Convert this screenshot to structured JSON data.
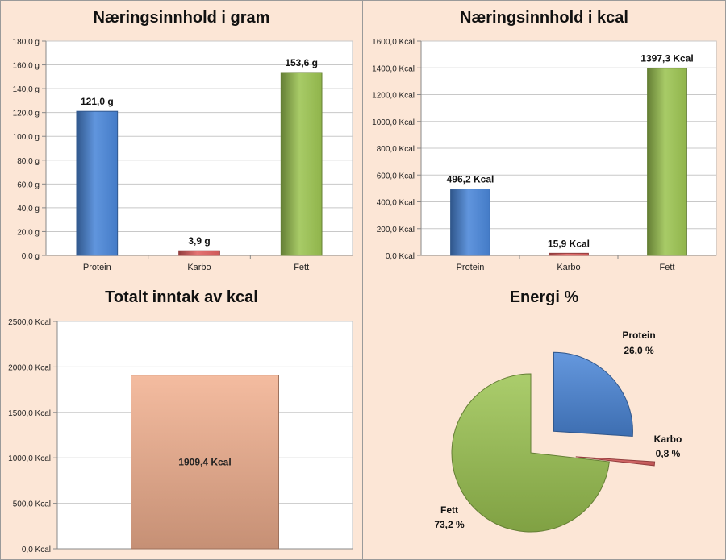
{
  "colors": {
    "protein": "#4a86d8",
    "karbo": "#e06060",
    "fett": "#9cc452",
    "total": "#f2b08f",
    "background": "#fce6d6"
  },
  "chart_data": [
    {
      "type": "bar",
      "title": "Næringsinnhold i gram",
      "categories": [
        "Protein",
        "Karbo",
        "Fett"
      ],
      "values": [
        121.0,
        3.9,
        153.6
      ],
      "data_labels": [
        "121,0 g",
        "3,9 g",
        "153,6 g"
      ],
      "ylim": [
        0,
        180
      ],
      "yticks": [
        "0,0 g",
        "20,0 g",
        "40,0 g",
        "60,0 g",
        "80,0 g",
        "100,0 g",
        "120,0 g",
        "140,0 g",
        "160,0 g",
        "180,0 g"
      ],
      "grid": true,
      "legend": "none"
    },
    {
      "type": "bar",
      "title": "Næringsinnhold i kcal",
      "categories": [
        "Protein",
        "Karbo",
        "Fett"
      ],
      "values": [
        496.2,
        15.9,
        1397.3
      ],
      "data_labels": [
        "496,2 Kcal",
        "15,9 Kcal",
        "1397,3 Kcal"
      ],
      "ylim": [
        0,
        1600
      ],
      "yticks": [
        "0,0 Kcal",
        "200,0 Kcal",
        "400,0 Kcal",
        "600,0 Kcal",
        "800,0 Kcal",
        "1000,0 Kcal",
        "1200,0 Kcal",
        "1400,0 Kcal",
        "1600,0 Kcal"
      ],
      "grid": true,
      "legend": "none"
    },
    {
      "type": "bar",
      "title": "Totalt inntak av kcal",
      "categories": [
        ""
      ],
      "values": [
        1909.4
      ],
      "data_labels": [
        "1909,4 Kcal"
      ],
      "ylim": [
        0,
        2500
      ],
      "yticks": [
        "0,0 Kcal",
        "500,0 Kcal",
        "1000,0 Kcal",
        "1500,0 Kcal",
        "2000,0 Kcal",
        "2500,0 Kcal"
      ],
      "grid": true,
      "legend": "none"
    },
    {
      "type": "pie",
      "title": "Energi %",
      "slices": [
        {
          "label": "Protein",
          "value": 26.0,
          "display": "26,0 %"
        },
        {
          "label": "Karbo",
          "value": 0.8,
          "display": "0,8 %"
        },
        {
          "label": "Fett",
          "value": 73.2,
          "display": "73,2 %"
        }
      ],
      "exploded": [
        "Protein",
        "Karbo"
      ],
      "legend": "none"
    }
  ]
}
